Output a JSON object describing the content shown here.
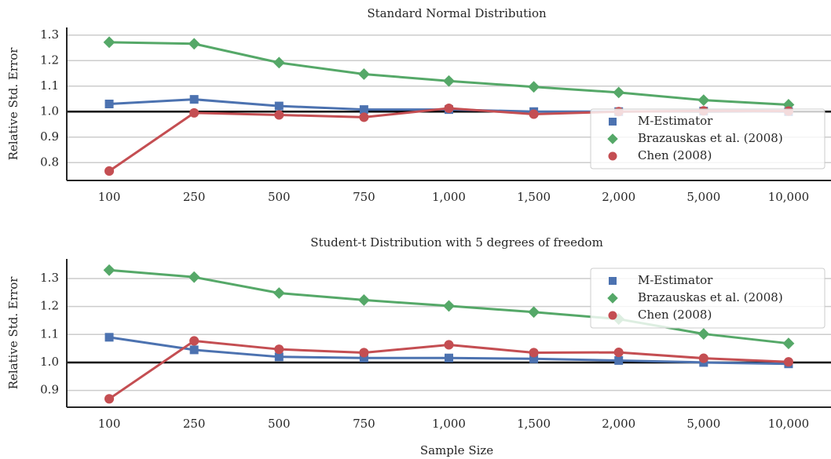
{
  "chart_data": [
    {
      "type": "line",
      "title": "Standard Normal Distribution",
      "y_label": "Relative Std. Error",
      "categories": [
        "100",
        "250",
        "500",
        "750",
        "1,000",
        "1,500",
        "2,000",
        "5,000",
        "10,000"
      ],
      "ylim": [
        0.73,
        1.33
      ],
      "yticks": [
        0.8,
        0.9,
        {
          "value": 1.0,
          "label": "1.0"
        },
        1.1,
        1.2,
        1.3
      ],
      "grid": true,
      "reference_line": 1,
      "legend": "lower right",
      "series": [
        {
          "name": "M-Estimator",
          "color": "#4c72b0",
          "marker": "square",
          "values": [
            1.03,
            1.048,
            1.022,
            1.008,
            1.008,
            1.0,
            1.0,
            1.002,
            1.0
          ]
        },
        {
          "name": "Brazauskas et al. (2008)",
          "color": "#55a868",
          "marker": "diamond",
          "values": [
            1.272,
            1.266,
            1.192,
            1.147,
            1.12,
            1.097,
            1.075,
            1.045,
            1.027
          ]
        },
        {
          "name": "Chen (2008)",
          "color": "#c44e52",
          "marker": "circle",
          "values": [
            0.767,
            0.995,
            0.987,
            0.978,
            1.013,
            0.99,
            1.0,
            1.003,
            1.002
          ]
        }
      ]
    },
    {
      "type": "line",
      "title": "Student-t Distribution with 5 degrees of freedom",
      "y_label": "Relative Std. Error",
      "x_label": "Sample Size",
      "categories": [
        "100",
        "250",
        "500",
        "750",
        "1,000",
        "1,500",
        "2,000",
        "5,000",
        "10,000"
      ],
      "ylim": [
        0.84,
        1.37
      ],
      "yticks": [
        0.9,
        {
          "value": 1.0,
          "label": "1.0"
        },
        1.1,
        1.2,
        1.3
      ],
      "grid": true,
      "reference_line": 1,
      "legend": "upper right",
      "series": [
        {
          "name": "M-Estimator",
          "color": "#4c72b0",
          "marker": "square",
          "values": [
            1.09,
            1.045,
            1.02,
            1.016,
            1.016,
            1.013,
            1.007,
            1.0,
            0.995
          ]
        },
        {
          "name": "Brazauskas et al. (2008)",
          "color": "#55a868",
          "marker": "diamond",
          "values": [
            1.33,
            1.305,
            1.248,
            1.223,
            1.202,
            1.18,
            1.155,
            1.102,
            1.068
          ]
        },
        {
          "name": "Chen (2008)",
          "color": "#c44e52",
          "marker": "circle",
          "values": [
            0.87,
            1.077,
            1.047,
            1.035,
            1.063,
            1.035,
            1.036,
            1.015,
            1.002
          ]
        }
      ]
    }
  ]
}
